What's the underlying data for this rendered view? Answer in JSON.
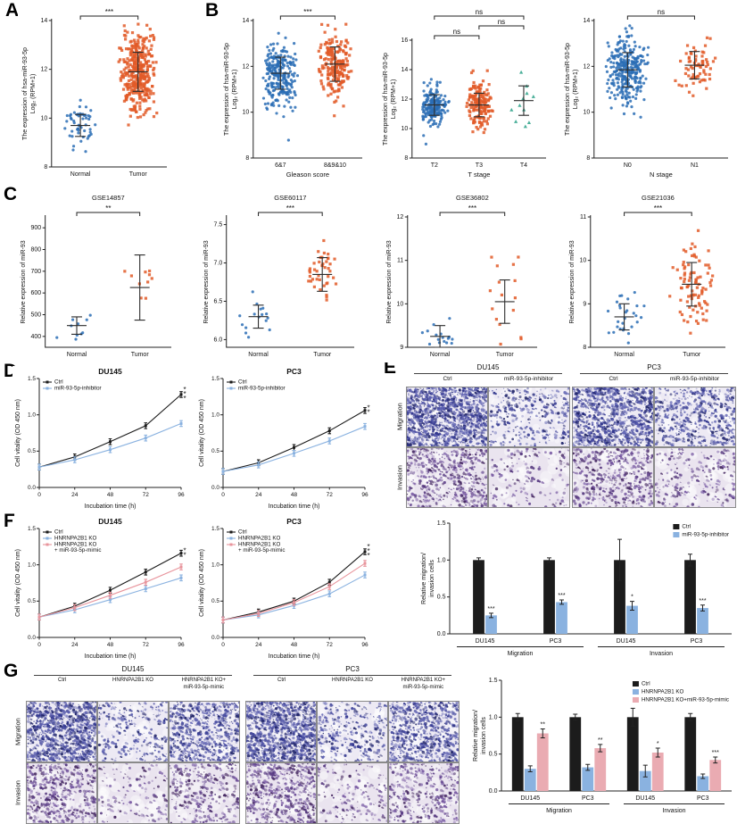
{
  "figure": {
    "panel_labels": {
      "A": "A",
      "B": "B",
      "C": "C",
      "D": "D",
      "E": "E",
      "F": "F",
      "G": "G"
    }
  },
  "panelE": {
    "cell_lines": [
      "DU145",
      "PC3"
    ],
    "conditions": [
      "Ctrl",
      "miR-93-5p-inhibitor"
    ],
    "rows": [
      "Migration",
      "Invasion"
    ],
    "densities": [
      [
        1300,
        330,
        1050,
        520
      ],
      [
        520,
        150,
        470,
        210
      ]
    ]
  },
  "panelG": {
    "cell_lines": [
      "DU145",
      "PC3"
    ],
    "conditions": [
      "Ctrl",
      "HNRNPA2B1 KO",
      "HNRNPA2B1 KO+\nmiR-93-5p-mimic"
    ],
    "rows": [
      "Migration",
      "Invasion"
    ],
    "densities": [
      [
        980,
        260,
        620,
        1050,
        300,
        720
      ],
      [
        500,
        120,
        310,
        520,
        150,
        370
      ]
    ]
  },
  "chart_data": [
    {
      "type": "scatter",
      "ylabel": [
        "The expression of hsa-miR-93-5p",
        "Log₂ (RPM+1)"
      ],
      "ylim": [
        8,
        14
      ],
      "yticks": [
        8,
        10,
        12,
        14
      ],
      "dec": 0,
      "groups": [
        {
          "label": "Normal",
          "n": 52,
          "mean": 9.7,
          "sd": 0.45,
          "color": "#2a6db5",
          "marker": "circle",
          "seed": 101
        },
        {
          "label": "Tumor",
          "n": 360,
          "mean": 11.9,
          "sd": 0.8,
          "color": "#e25a28",
          "marker": "square",
          "seed": 102
        }
      ],
      "sig": [
        {
          "from": 0,
          "to": 1,
          "label": "***",
          "level": 0
        }
      ]
    },
    {
      "type": "scatter",
      "xlabel": "Gleason score",
      "ylabel": [
        "The expression of hsa-miR-93-5p",
        "Log₂ (RPM+1)"
      ],
      "ylim": [
        8,
        14
      ],
      "yticks": [
        8,
        10,
        12,
        14
      ],
      "dec": 0,
      "groups": [
        {
          "label": "6&7",
          "n": 250,
          "mean": 11.7,
          "sd": 0.7,
          "color": "#2a6db5",
          "marker": "circle",
          "seed": 111
        },
        {
          "label": "8&9&10",
          "n": 200,
          "mean": 12.1,
          "sd": 0.75,
          "color": "#e25a28",
          "marker": "square",
          "seed": 112
        }
      ],
      "sig": [
        {
          "from": 0,
          "to": 1,
          "label": "***",
          "level": 0
        }
      ]
    },
    {
      "type": "scatter",
      "xlabel": "T stage",
      "ylabel": [
        "The expression of hsa-miR-93-5p",
        "Log₂ (RPM+1)"
      ],
      "ylim": [
        8,
        16
      ],
      "yticks": [
        8,
        10,
        12,
        14,
        16
      ],
      "dec": 0,
      "groups": [
        {
          "label": "T2",
          "n": 185,
          "mean": 11.6,
          "sd": 0.7,
          "color": "#2a6db5",
          "marker": "circle",
          "seed": 121
        },
        {
          "label": "T3",
          "n": 165,
          "mean": 11.6,
          "sd": 0.8,
          "color": "#e25a28",
          "marker": "square",
          "seed": 122
        },
        {
          "label": "T4",
          "n": 11,
          "mean": 11.9,
          "sd": 1.0,
          "color": "#2aa187",
          "marker": "triangle",
          "seed": 123
        }
      ],
      "sig": [
        {
          "from": 0,
          "to": 1,
          "label": "ns",
          "level": 0
        },
        {
          "from": 1,
          "to": 2,
          "label": "ns",
          "level": 1
        },
        {
          "from": 0,
          "to": 2,
          "label": "ns",
          "level": 2
        }
      ]
    },
    {
      "type": "scatter",
      "xlabel": "N stage",
      "ylabel": [
        "The expression of hsa-miR-93-5p",
        "Log₂ (RPM+1)"
      ],
      "ylim": [
        8,
        14
      ],
      "yticks": [
        8,
        10,
        12,
        14
      ],
      "dec": 0,
      "groups": [
        {
          "label": "N0",
          "n": 300,
          "mean": 11.85,
          "sd": 0.75,
          "color": "#2a6db5",
          "marker": "circle",
          "seed": 131
        },
        {
          "label": "N1",
          "n": 68,
          "mean": 12.05,
          "sd": 0.6,
          "color": "#e25a28",
          "marker": "square",
          "seed": 132
        }
      ],
      "sig": [
        {
          "from": 0,
          "to": 1,
          "label": "ns",
          "level": 0
        }
      ]
    },
    {
      "type": "scatter",
      "title": "GSE14857",
      "ylabel": [
        "Relative expression of miR-93"
      ],
      "ylim": [
        350,
        950
      ],
      "yticks": [
        400,
        500,
        600,
        700,
        800,
        900
      ],
      "dec": 0,
      "groups": [
        {
          "label": "Normal",
          "n": 10,
          "mean": 450,
          "sd": 40,
          "color": "#2a6db5",
          "marker": "circle",
          "seed": 141
        },
        {
          "label": "Tumor",
          "n": 10,
          "mean": 625,
          "sd": 150,
          "color": "#e25a28",
          "marker": "square",
          "seed": 142
        }
      ],
      "sig": [
        {
          "from": 0,
          "to": 1,
          "label": "**",
          "level": 0
        }
      ]
    },
    {
      "type": "scatter",
      "title": "GSE60117",
      "ylabel": [
        "Relative expression of miR-93"
      ],
      "ylim": [
        5.9,
        7.6
      ],
      "yticks": [
        6.0,
        6.5,
        7.0,
        7.5
      ],
      "dec": 1,
      "groups": [
        {
          "label": "Normal",
          "n": 16,
          "mean": 6.3,
          "sd": 0.15,
          "color": "#2a6db5",
          "marker": "circle",
          "seed": 151
        },
        {
          "label": "Tumor",
          "n": 42,
          "mean": 6.85,
          "sd": 0.22,
          "color": "#e25a28",
          "marker": "square",
          "seed": 152
        }
      ],
      "sig": [
        {
          "from": 0,
          "to": 1,
          "label": "***",
          "level": 0
        }
      ]
    },
    {
      "type": "scatter",
      "title": "GSE36802",
      "ylabel": [
        "Relative expression of miR-93"
      ],
      "ylim": [
        9,
        12
      ],
      "yticks": [
        9,
        10,
        11,
        12
      ],
      "dec": 0,
      "groups": [
        {
          "label": "Normal",
          "n": 16,
          "mean": 9.25,
          "sd": 0.25,
          "color": "#2a6db5",
          "marker": "circle",
          "seed": 161
        },
        {
          "label": "Tumor",
          "n": 16,
          "mean": 10.05,
          "sd": 0.5,
          "color": "#e25a28",
          "marker": "square",
          "seed": 162
        }
      ],
      "sig": [
        {
          "from": 0,
          "to": 1,
          "label": "***",
          "level": 0
        }
      ]
    },
    {
      "type": "scatter",
      "title": "GSE21036",
      "ylabel": [
        "Relative expression of miR-93"
      ],
      "ylim": [
        8,
        11
      ],
      "yticks": [
        8,
        9,
        10,
        11
      ],
      "dec": 0,
      "groups": [
        {
          "label": "Normal",
          "n": 28,
          "mean": 8.7,
          "sd": 0.3,
          "color": "#2a6db5",
          "marker": "circle",
          "seed": 171
        },
        {
          "label": "Tumor",
          "n": 90,
          "mean": 9.45,
          "sd": 0.5,
          "color": "#e25a28",
          "marker": "square",
          "seed": 172
        }
      ],
      "sig": [
        {
          "from": 0,
          "to": 1,
          "label": "***",
          "level": 0
        }
      ]
    },
    {
      "type": "line",
      "title": "DU145",
      "xlabel": "Incubation time (h)",
      "ylabel": [
        "Cell vitality (OD 450 nm)"
      ],
      "x": [
        0,
        24,
        48,
        72,
        96
      ],
      "ylim": [
        0,
        1.5
      ],
      "yticks": [
        0,
        0.5,
        1,
        1.5
      ],
      "series": [
        {
          "name": "Ctrl",
          "color": "#1a1a1a",
          "err": 0.04,
          "values": [
            0.28,
            0.42,
            0.63,
            0.85,
            1.28
          ]
        },
        {
          "name": "miR-93-5p-inhibitor",
          "color": "#8ab2e0",
          "err": 0.04,
          "values": [
            0.28,
            0.38,
            0.52,
            0.68,
            0.88
          ]
        }
      ],
      "sig": "***"
    },
    {
      "type": "line",
      "title": "PC3",
      "xlabel": "Incubation time (h)",
      "ylabel": [
        "Cell vitality (OD 450 nm)"
      ],
      "x": [
        0,
        24,
        48,
        72,
        96
      ],
      "ylim": [
        0,
        1.5
      ],
      "yticks": [
        0,
        0.5,
        1,
        1.5
      ],
      "series": [
        {
          "name": "Ctrl",
          "color": "#1a1a1a",
          "err": 0.04,
          "values": [
            0.22,
            0.34,
            0.55,
            0.78,
            1.06
          ]
        },
        {
          "name": "miR-93-5p-inhibitor",
          "color": "#8ab2e0",
          "err": 0.04,
          "values": [
            0.22,
            0.31,
            0.47,
            0.64,
            0.84
          ]
        }
      ],
      "sig": "**"
    },
    {
      "type": "bar",
      "ylabel": [
        "Relative migration/",
        "invasion cells"
      ],
      "ylim": [
        0,
        1.5
      ],
      "yticks": [
        0,
        0.5,
        1,
        1.5
      ],
      "categories": [
        "DU145",
        "PC3",
        "DU145",
        "PC3"
      ],
      "series": [
        {
          "name": "Ctrl",
          "color": "#1c1c1c",
          "values": [
            1,
            1,
            1,
            1
          ],
          "errors": [
            0.03,
            0.03,
            0.28,
            0.08
          ]
        },
        {
          "name": "miR-93-5p-inhibitor",
          "color": "#8ab2e0",
          "values": [
            0.25,
            0.43,
            0.38,
            0.35
          ],
          "errors": [
            0.03,
            0.03,
            0.06,
            0.04
          ]
        }
      ],
      "sig": [
        "***",
        "***",
        "*",
        "***"
      ],
      "sig_series": 1,
      "groups_x": [
        {
          "label": "Migration",
          "cats": [
            0,
            1
          ]
        },
        {
          "label": "Invasion",
          "cats": [
            2,
            3
          ]
        }
      ]
    },
    {
      "type": "line",
      "title": "DU145",
      "xlabel": "Incubation time (h)",
      "ylabel": [
        "Cell vitality (OD 450 nm)"
      ],
      "x": [
        0,
        24,
        48,
        72,
        96
      ],
      "ylim": [
        0,
        1.5
      ],
      "yticks": [
        0,
        0.5,
        1,
        1.5
      ],
      "series": [
        {
          "name": "Ctrl",
          "color": "#1a1a1a",
          "err": 0.04,
          "values": [
            0.28,
            0.43,
            0.65,
            0.9,
            1.16
          ]
        },
        {
          "name": "HNRNPA2B1 KO",
          "color": "#8ab2e0",
          "err": 0.04,
          "values": [
            0.28,
            0.38,
            0.52,
            0.67,
            0.82
          ]
        },
        {
          "name": "HNRNPA2B1 KO\n+ miR-93-5p-mimic",
          "color": "#e8949c",
          "err": 0.04,
          "values": [
            0.28,
            0.41,
            0.58,
            0.76,
            0.97
          ]
        }
      ],
      "sig": "**"
    },
    {
      "type": "line",
      "title": "PC3",
      "xlabel": "Incubation time (h)",
      "ylabel": [
        "Cell vitality (OD 450 nm)"
      ],
      "x": [
        0,
        24,
        48,
        72,
        96
      ],
      "ylim": [
        0,
        1.5
      ],
      "yticks": [
        0,
        0.5,
        1,
        1.5
      ],
      "series": [
        {
          "name": "Ctrl",
          "color": "#1a1a1a",
          "err": 0.04,
          "values": [
            0.24,
            0.35,
            0.5,
            0.76,
            1.18
          ]
        },
        {
          "name": "HNRNPA2B1 KO",
          "color": "#8ab2e0",
          "err": 0.04,
          "values": [
            0.24,
            0.31,
            0.44,
            0.6,
            0.86
          ]
        },
        {
          "name": "HNRNPA2B1 KO\n+ miR-93-5p-mimic",
          "color": "#e8949c",
          "err": 0.04,
          "values": [
            0.24,
            0.33,
            0.48,
            0.7,
            1.02
          ]
        }
      ],
      "sig": "***"
    },
    {
      "type": "bar",
      "ylabel": [
        "Relative migration/",
        "invasion cells"
      ],
      "ylim": [
        0,
        1.5
      ],
      "yticks": [
        0,
        0.5,
        1,
        1.5
      ],
      "categories": [
        "DU145",
        "PC3",
        "DU145",
        "PC3"
      ],
      "series": [
        {
          "name": "Ctrl",
          "color": "#1c1c1c",
          "values": [
            1,
            1,
            1,
            1
          ],
          "errors": [
            0.05,
            0.04,
            0.12,
            0.05
          ]
        },
        {
          "name": "HNRNPA2B1 KO",
          "color": "#8ab2e0",
          "values": [
            0.3,
            0.32,
            0.27,
            0.2
          ],
          "errors": [
            0.04,
            0.04,
            0.08,
            0.03
          ]
        },
        {
          "name": "HNRNPA2B1 KO+miR-93-5p-mimic",
          "color": "#eaabb2",
          "values": [
            0.78,
            0.58,
            0.52,
            0.42
          ],
          "errors": [
            0.06,
            0.05,
            0.06,
            0.04
          ]
        }
      ],
      "sig": [
        "**",
        "**",
        "*",
        "***"
      ],
      "sig_series": 2,
      "groups_x": [
        {
          "label": "Migration",
          "cats": [
            0,
            1
          ]
        },
        {
          "label": "Invasion",
          "cats": [
            2,
            3
          ]
        }
      ]
    }
  ]
}
